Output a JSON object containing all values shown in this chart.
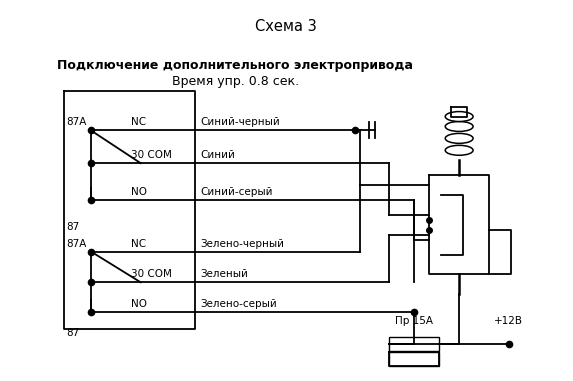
{
  "title": "Схема 3",
  "subtitle_bold": "Подключение дополнительного электропривода",
  "subtitle_normal": "Время упр. 0.8 сек.",
  "bg_color": "#ffffff",
  "wire_labels": [
    "Синий-черный",
    "Синий",
    "Синий-серый",
    "Зелено-черный",
    "Зеленый",
    "Зелено-серый"
  ],
  "bottom_label1": "Пр 15А",
  "bottom_label2": "+12В",
  "r1_87a_label": "87A",
  "r1_nc_label": "NC",
  "r1_com_label": "30 COM",
  "r1_no_label": "NO",
  "r1_87_label": "87",
  "r2_87a_label": "87A",
  "r2_nc_label": "NC",
  "r2_com_label": "30 COM",
  "r2_no_label": "NO",
  "r2_87_label": "87"
}
